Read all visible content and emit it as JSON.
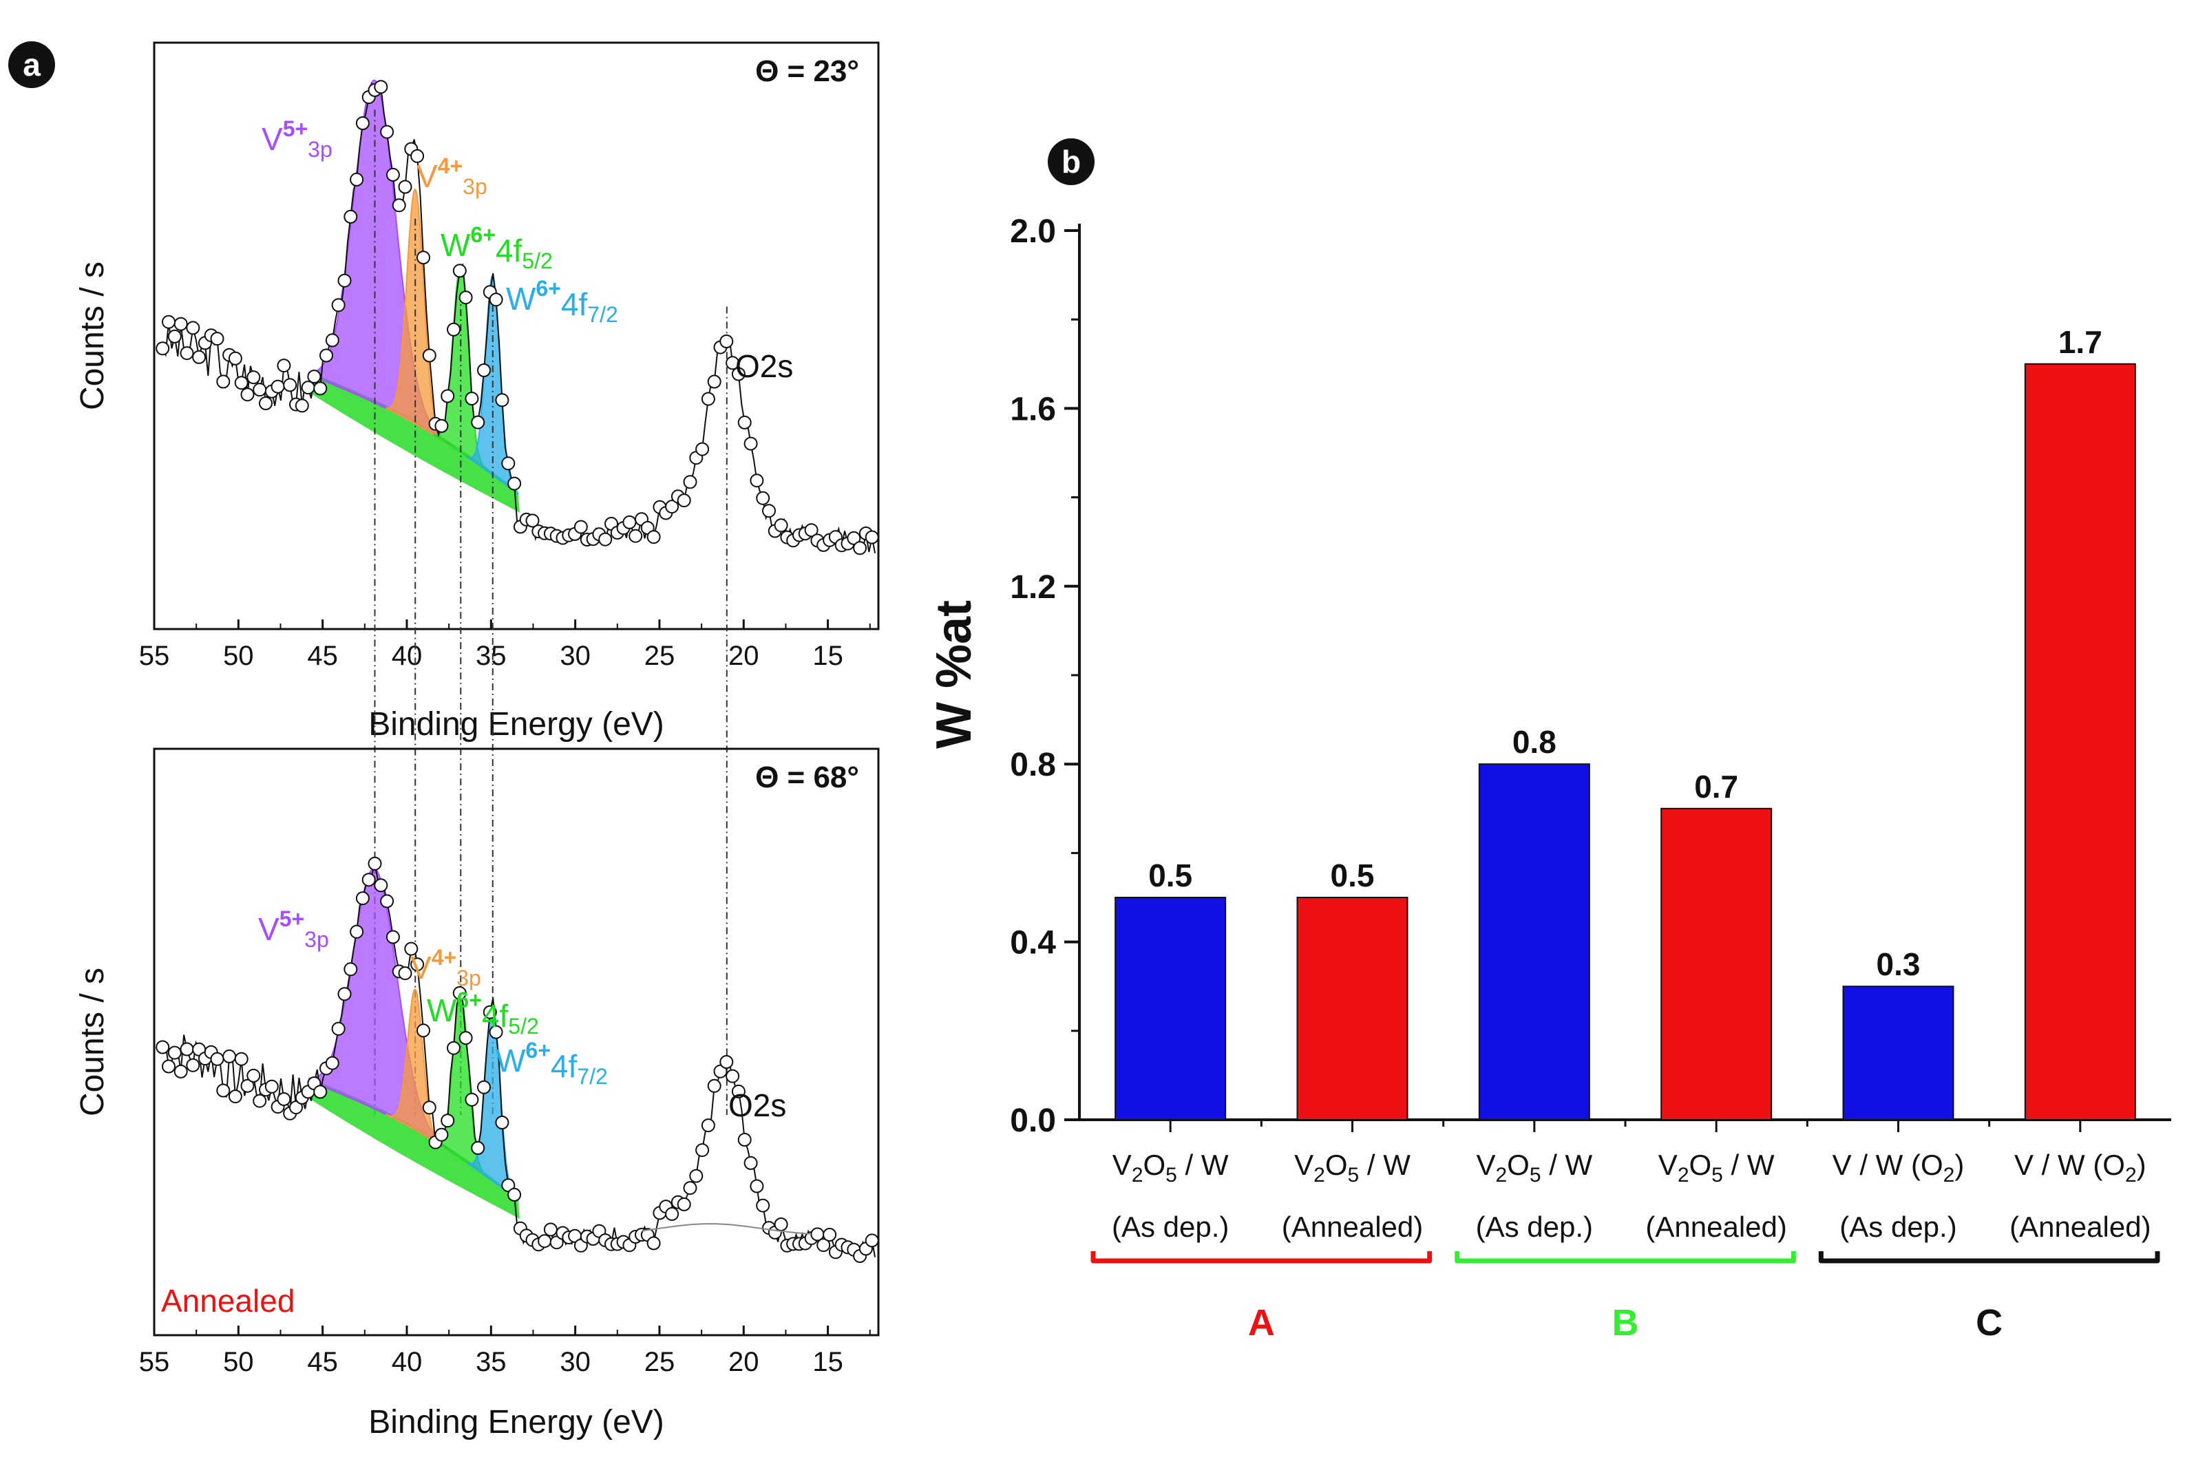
{
  "panels": {
    "a": {
      "badge": "a"
    },
    "b": {
      "badge": "b"
    }
  },
  "chart_data": [
    {
      "type": "line",
      "panel": "a-top",
      "title": "Θ = 23°",
      "xlabel": "Binding Energy (eV)",
      "ylabel": "Counts / s",
      "xlim": [
        55,
        12
      ],
      "xticks": [
        55,
        50,
        45,
        40,
        35,
        30,
        25,
        20,
        15
      ],
      "peaks": [
        {
          "name": "V5+ 3p",
          "center": 41.9,
          "color": "#a64dff",
          "base": "V",
          "sup": "5+",
          "sub": "3p"
        },
        {
          "name": "V4+ 3p",
          "center": 39.5,
          "color": "#f59a3c",
          "base": "V",
          "sup": "4+",
          "sub": "3p"
        },
        {
          "name": "W6+ 4f5/2",
          "center": 36.8,
          "color": "#22dd22",
          "base": "W",
          "sup": "6+",
          "sub": "4f5/2"
        },
        {
          "name": "W6+ 4f7/2",
          "center": 34.9,
          "color": "#29aee8",
          "base": "W",
          "sup": "6+",
          "sub": "4f7/2"
        },
        {
          "name": "O2s",
          "center": 21.0,
          "color": "#111111",
          "base": "O2s",
          "sup": "",
          "sub": ""
        }
      ]
    },
    {
      "type": "line",
      "panel": "a-bottom",
      "title": "Θ = 68°",
      "annotation": "Annealed",
      "xlabel": "Binding Energy (eV)",
      "ylabel": "Counts / s",
      "xlim": [
        55,
        12
      ],
      "xticks": [
        55,
        50,
        45,
        40,
        35,
        30,
        25,
        20,
        15
      ],
      "peaks": [
        {
          "name": "V5+ 3p",
          "center": 41.9,
          "color": "#a64dff",
          "base": "V",
          "sup": "5+",
          "sub": "3p"
        },
        {
          "name": "V4+ 3p",
          "center": 39.5,
          "color": "#f59a3c",
          "base": "V",
          "sup": "4+",
          "sub": "3p"
        },
        {
          "name": "W6+ 4f5/2",
          "center": 36.8,
          "color": "#22dd22",
          "base": "W",
          "sup": "6+",
          "sub": "4f5/2"
        },
        {
          "name": "W6+ 4f7/2",
          "center": 34.9,
          "color": "#29aee8",
          "base": "W",
          "sup": "6+",
          "sub": "4f7/2"
        },
        {
          "name": "O2s",
          "center": 21.0,
          "color": "#111111",
          "base": "O2s",
          "sup": "",
          "sub": ""
        }
      ]
    },
    {
      "type": "bar",
      "panel": "b",
      "ylabel": "W %at",
      "ylim": [
        0.0,
        2.0
      ],
      "yticks": [
        "0.0",
        "0.4",
        "0.8",
        "1.2",
        "1.6",
        "2.0"
      ],
      "categories": [
        {
          "line1": "V2O5 / W",
          "line2": "(As dep.)",
          "value": 0.5,
          "value_label": "0.5",
          "color": "#1010e6"
        },
        {
          "line1": "V2O5 / W",
          "line2": "(Annealed)",
          "value": 0.5,
          "value_label": "0.5",
          "color": "#ee1111"
        },
        {
          "line1": "V2O5 / W",
          "line2": "(As dep.)",
          "value": 0.8,
          "value_label": "0.8",
          "color": "#1010e6"
        },
        {
          "line1": "V2O5 / W",
          "line2": "(Annealed)",
          "value": 0.7,
          "value_label": "0.7",
          "color": "#ee1111"
        },
        {
          "line1": "V / W (O2)",
          "line2": "(As dep.)",
          "value": 0.3,
          "value_label": "0.3",
          "color": "#1010e6"
        },
        {
          "line1": "V / W (O2)",
          "line2": "(Annealed)",
          "value": 1.7,
          "value_label": "1.7",
          "color": "#ee1111"
        }
      ],
      "groups": [
        {
          "label": "A",
          "color": "#ee1111"
        },
        {
          "label": "B",
          "color": "#33ee33"
        },
        {
          "label": "C",
          "color": "#111111"
        }
      ]
    }
  ]
}
